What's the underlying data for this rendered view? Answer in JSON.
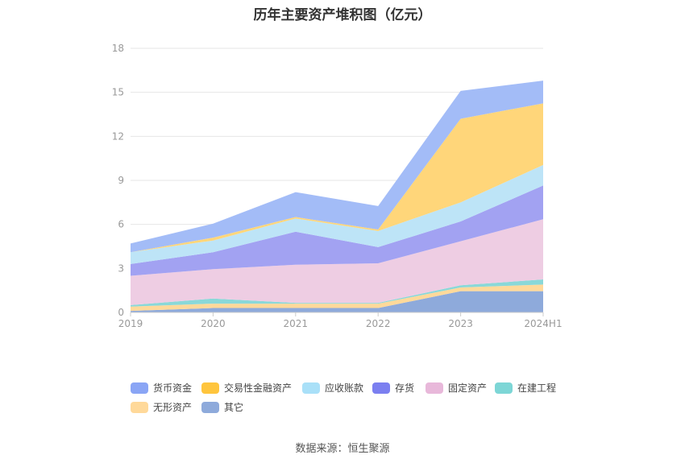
{
  "chart_data": {
    "type": "area",
    "stacked": true,
    "title": "历年主要资产堆积图（亿元）",
    "source": "数据来源：恒生聚源",
    "categories": [
      "2019",
      "2020",
      "2021",
      "2022",
      "2023",
      "2024H1"
    ],
    "ylim": [
      0,
      18
    ],
    "yticks": [
      0,
      3,
      6,
      9,
      12,
      15,
      18
    ],
    "grid": true,
    "legend_position": "bottom",
    "series": [
      {
        "name": "其它",
        "color": "#8eaadb",
        "values": [
          0.1,
          0.3,
          0.3,
          0.3,
          1.45,
          1.45
        ]
      },
      {
        "name": "无形资产",
        "color": "#ffd99a",
        "values": [
          0.3,
          0.3,
          0.3,
          0.3,
          0.25,
          0.45
        ]
      },
      {
        "name": "在建工程",
        "color": "#8ad8d8",
        "values": [
          0.1,
          0.35,
          0.05,
          0.05,
          0.15,
          0.35
        ]
      },
      {
        "name": "固定资产",
        "color": "#eecde3",
        "values": [
          2.0,
          2.0,
          2.6,
          2.7,
          3.0,
          4.1
        ]
      },
      {
        "name": "存货",
        "color": "#a2a2f2",
        "values": [
          0.8,
          1.15,
          2.25,
          1.1,
          1.35,
          2.3
        ]
      },
      {
        "name": "应收账款",
        "color": "#bde4f7",
        "values": [
          0.8,
          0.8,
          0.9,
          1.1,
          1.3,
          1.4
        ]
      },
      {
        "name": "交易性金融资产",
        "color": "#ffd67a",
        "values": [
          0.0,
          0.2,
          0.1,
          0.1,
          5.7,
          4.2
        ]
      },
      {
        "name": "货币资金",
        "color": "#a3bcf7",
        "values": [
          0.6,
          0.95,
          1.7,
          1.6,
          1.9,
          1.55
        ]
      }
    ],
    "legend": [
      {
        "name": "货币资金",
        "color": "#8aa5f5"
      },
      {
        "name": "交易性金融资产",
        "color": "#ffc53d"
      },
      {
        "name": "应收账款",
        "color": "#a9e0f8"
      },
      {
        "name": "存货",
        "color": "#7b7ff0"
      },
      {
        "name": "固定资产",
        "color": "#e8b8da"
      },
      {
        "name": "在建工程",
        "color": "#7dd6d6"
      },
      {
        "name": "无形资产",
        "color": "#ffd99a"
      },
      {
        "name": "其它",
        "color": "#8eaadb"
      }
    ]
  }
}
